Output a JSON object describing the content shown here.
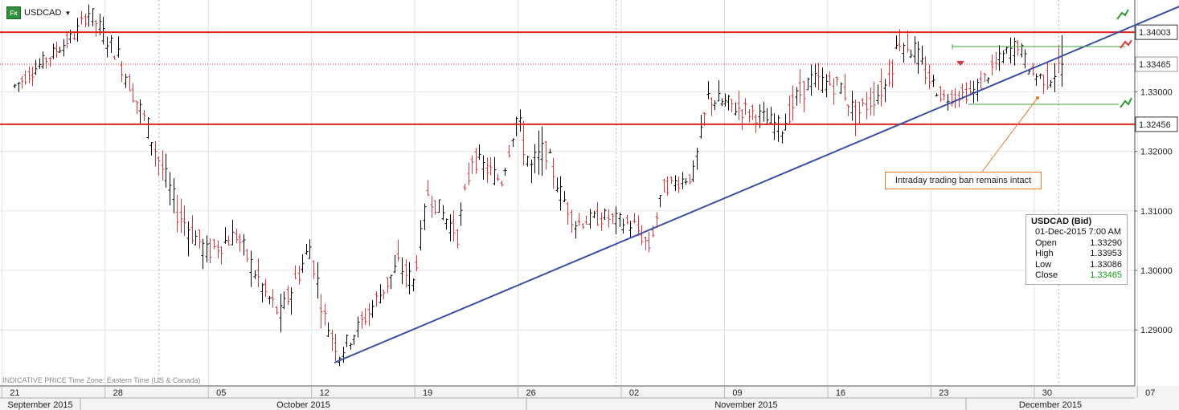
{
  "toolbar": {
    "symbol": "USDCAD",
    "icon": "fx-icon"
  },
  "annotation": "Intraday trading ban remains intact",
  "footer_note": "INDICATIVE PRICE   Time Zone: Eastern Time (US & Canada)",
  "info_box": {
    "title": "USDCAD (Bid)",
    "timestamp": "01-Dec-2015 7:00 AM",
    "rows": [
      {
        "label": "Open",
        "value": "1.33290"
      },
      {
        "label": "High",
        "value": "1.33953"
      },
      {
        "label": "Low",
        "value": "1.33086"
      },
      {
        "label": "Close",
        "value": "1.33465"
      }
    ]
  },
  "colors": {
    "up": "#000000",
    "down": "#d9363e",
    "level": "#d9271e",
    "trend": "#3c4fa5",
    "current": "#1a9a1a",
    "callout": "#e07a2e"
  },
  "chart_data": {
    "type": "candlestick",
    "y_ticks": [
      "1.33000",
      "1.32000",
      "1.31000",
      "1.30000",
      "1.29000"
    ],
    "ylim": [
      1.284,
      1.348
    ],
    "x_ticks": [
      "21",
      "28",
      "05",
      "12",
      "19",
      "26",
      "02",
      "09",
      "16",
      "23",
      "30",
      "07"
    ],
    "months": [
      "September 2015",
      "October 2015",
      "November 2015",
      "December 2015"
    ],
    "levels": [
      {
        "value": 1.34003,
        "label": "1.34003"
      },
      {
        "value": 1.32456,
        "label": "1.32456"
      }
    ],
    "current_price": {
      "value": 1.33465,
      "label": "1.33465"
    },
    "trendline": [
      {
        "x": "2015-10-13",
        "y": 1.2845
      },
      {
        "x": "2015-12-09",
        "y": 1.3445
      }
    ],
    "anchors": [
      {
        "x": "2015-09-21",
        "close": 1.331,
        "high": 1.3345,
        "low": 1.3295
      },
      {
        "x": "2015-09-25",
        "close": 1.3395,
        "high": 1.342,
        "low": 1.338
      },
      {
        "x": "2015-09-26",
        "close": 1.3435,
        "high": 1.3455,
        "low": 1.3405
      },
      {
        "x": "2015-09-28",
        "close": 1.336,
        "high": 1.3405,
        "low": 1.333
      },
      {
        "x": "2015-09-30",
        "close": 1.324,
        "high": 1.328,
        "low": 1.321
      },
      {
        "x": "2015-10-02",
        "close": 1.31,
        "high": 1.315,
        "low": 1.306
      },
      {
        "x": "2015-10-04",
        "close": 1.303,
        "high": 1.3075,
        "low": 1.299
      },
      {
        "x": "2015-10-06",
        "close": 1.306,
        "high": 1.3075,
        "low": 1.302
      },
      {
        "x": "2015-10-08",
        "close": 1.296,
        "high": 1.3,
        "low": 1.291
      },
      {
        "x": "2015-10-09",
        "close": 1.2925,
        "high": 1.296,
        "low": 1.29
      },
      {
        "x": "2015-10-11",
        "close": 1.304,
        "high": 1.308,
        "low": 1.299
      },
      {
        "x": "2015-10-12",
        "close": 1.292,
        "high": 1.296,
        "low": 1.289
      },
      {
        "x": "2015-10-13",
        "close": 1.286,
        "high": 1.29,
        "low": 1.2842
      },
      {
        "x": "2015-10-15",
        "close": 1.293,
        "high": 1.296,
        "low": 1.29
      },
      {
        "x": "2015-10-17",
        "close": 1.301,
        "high": 1.305,
        "low": 1.297
      },
      {
        "x": "2015-10-18",
        "close": 1.298,
        "high": 1.302,
        "low": 1.295
      },
      {
        "x": "2015-10-19",
        "close": 1.313,
        "high": 1.315,
        "low": 1.309
      },
      {
        "x": "2015-10-21",
        "close": 1.306,
        "high": 1.31,
        "low": 1.304
      },
      {
        "x": "2015-10-22",
        "close": 1.319,
        "high": 1.321,
        "low": 1.314
      },
      {
        "x": "2015-10-24",
        "close": 1.315,
        "high": 1.3175,
        "low": 1.312
      },
      {
        "x": "2015-10-25",
        "close": 1.3255,
        "high": 1.3275,
        "low": 1.323
      },
      {
        "x": "2015-10-26",
        "close": 1.317,
        "high": 1.324,
        "low": 1.3085
      },
      {
        "x": "2015-10-27",
        "close": 1.32,
        "high": 1.324,
        "low": 1.317
      },
      {
        "x": "2015-10-28",
        "close": 1.313,
        "high": 1.316,
        "low": 1.31
      },
      {
        "x": "2015-10-29",
        "close": 1.308,
        "high": 1.312,
        "low": 1.3055
      },
      {
        "x": "2015-10-31",
        "close": 1.309,
        "high": 1.311,
        "low": 1.307
      },
      {
        "x": "2015-11-02",
        "close": 1.3075,
        "high": 1.3115,
        "low": 1.305
      },
      {
        "x": "2015-11-03",
        "close": 1.304,
        "high": 1.308,
        "low": 1.303
      },
      {
        "x": "2015-11-04",
        "close": 1.314,
        "high": 1.316,
        "low": 1.311
      },
      {
        "x": "2015-11-06",
        "close": 1.316,
        "high": 1.319,
        "low": 1.314
      },
      {
        "x": "2015-11-07",
        "close": 1.329,
        "high": 1.331,
        "low": 1.323
      },
      {
        "x": "2015-11-10",
        "close": 1.3265,
        "high": 1.329,
        "low": 1.324
      },
      {
        "x": "2015-11-12",
        "close": 1.324,
        "high": 1.329,
        "low": 1.3225
      },
      {
        "x": "2015-11-13",
        "close": 1.329,
        "high": 1.333,
        "low": 1.326
      },
      {
        "x": "2015-11-14",
        "close": 1.332,
        "high": 1.336,
        "low": 1.329
      },
      {
        "x": "2015-11-16",
        "close": 1.331,
        "high": 1.334,
        "low": 1.328
      },
      {
        "x": "2015-11-17",
        "close": 1.326,
        "high": 1.332,
        "low": 1.3245
      },
      {
        "x": "2015-11-19",
        "close": 1.331,
        "high": 1.334,
        "low": 1.328
      },
      {
        "x": "2015-11-20",
        "close": 1.339,
        "high": 1.344,
        "low": 1.334
      },
      {
        "x": "2015-11-21",
        "close": 1.337,
        "high": 1.34,
        "low": 1.333
      },
      {
        "x": "2015-11-22",
        "close": 1.332,
        "high": 1.335,
        "low": 1.329
      },
      {
        "x": "2015-11-23",
        "close": 1.329,
        "high": 1.332,
        "low": 1.327
      },
      {
        "x": "2015-11-25",
        "close": 1.33,
        "high": 1.332,
        "low": 1.328
      },
      {
        "x": "2015-11-27",
        "close": 1.336,
        "high": 1.339,
        "low": 1.332
      },
      {
        "x": "2015-11-28",
        "close": 1.338,
        "high": 1.34,
        "low": 1.335
      },
      {
        "x": "2015-11-29",
        "close": 1.333,
        "high": 1.336,
        "low": 1.331
      },
      {
        "x": "2015-11-30",
        "close": 1.332,
        "high": 1.335,
        "low": 1.33
      },
      {
        "x": "2015-12-01",
        "close": 1.33465,
        "high": 1.33953,
        "low": 1.33086
      }
    ]
  }
}
